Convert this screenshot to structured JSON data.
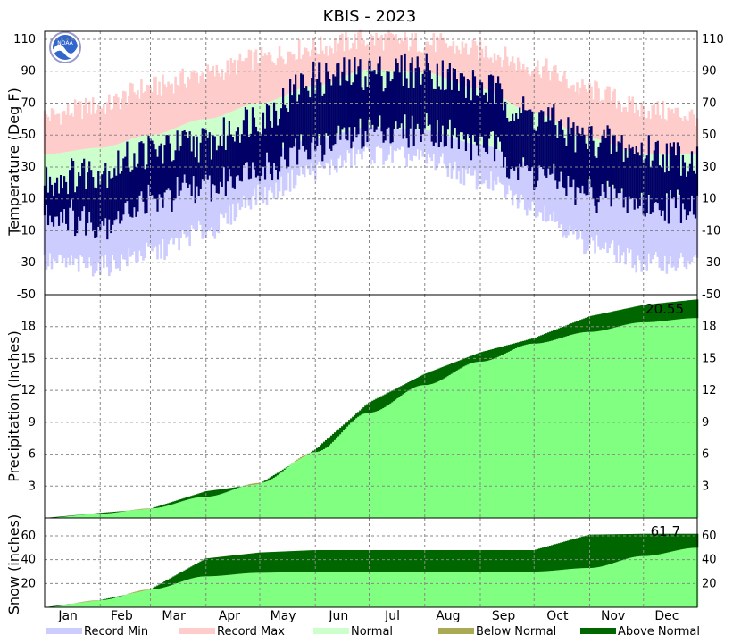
{
  "chart_data": {
    "type": "area",
    "title": "KBIS - 2023",
    "months": [
      "Jan",
      "Feb",
      "Mar",
      "Apr",
      "May",
      "Jun",
      "Jul",
      "Aug",
      "Sep",
      "Oct",
      "Nov",
      "Dec"
    ],
    "legend": {
      "record_min": {
        "label": "Record Min",
        "color": "#ccccff"
      },
      "record_max": {
        "label": "Record Max",
        "color": "#ffcccc"
      },
      "normal": {
        "label": "Normal",
        "color": "#ccffcc"
      },
      "below_normal": {
        "label": "Below Normal",
        "color": "#aaaa55"
      },
      "above_normal": {
        "label": "Above Normal",
        "color": "#006600"
      }
    },
    "temperature": {
      "ylabel": "Temperature (Deg F)",
      "ylim": [
        -50,
        115
      ],
      "ticks": [
        -50,
        -30,
        -10,
        10,
        30,
        50,
        70,
        90,
        110
      ],
      "daily_range_color": "#000066",
      "day_of_year": [
        1,
        32,
        60,
        91,
        121,
        152,
        182,
        213,
        244,
        274,
        305,
        335,
        365
      ],
      "normal_high": [
        38,
        42,
        50,
        60,
        70,
        81,
        91,
        89,
        79,
        64,
        48,
        38,
        38
      ],
      "normal_low": [
        12,
        15,
        21,
        28,
        38,
        48,
        55,
        53,
        44,
        32,
        20,
        12,
        12
      ],
      "record_high": [
        62,
        68,
        80,
        88,
        98,
        105,
        110,
        108,
        103,
        93,
        78,
        66,
        62
      ],
      "record_low": [
        -30,
        -32,
        -24,
        -10,
        12,
        28,
        38,
        35,
        22,
        5,
        -18,
        -30,
        -30
      ],
      "observed_high": [
        22,
        28,
        40,
        45,
        62,
        85,
        89,
        91,
        80,
        62,
        47,
        40,
        35
      ],
      "observed_low": [
        5,
        0,
        12,
        22,
        34,
        48,
        56,
        58,
        48,
        30,
        18,
        10,
        10
      ]
    },
    "precipitation": {
      "ylabel": "Precipitation (Inches)",
      "ylim": [
        0,
        21
      ],
      "ticks": [
        3,
        6,
        9,
        12,
        15,
        18
      ],
      "total_label": "20.55",
      "day_of_year": [
        1,
        32,
        60,
        91,
        121,
        152,
        182,
        213,
        244,
        274,
        305,
        335,
        365
      ],
      "normal": [
        0,
        0.4,
        0.9,
        2.0,
        3.3,
        6.2,
        9.9,
        12.5,
        14.7,
        16.4,
        17.5,
        18.4,
        18.8
      ],
      "actual": [
        0,
        0.5,
        0.9,
        2.6,
        3.3,
        6.6,
        11.1,
        13.8,
        15.8,
        17.1,
        19.1,
        20.1,
        20.55
      ]
    },
    "snow": {
      "ylabel": "Snow (inches)",
      "ylim": [
        0,
        75
      ],
      "ticks": [
        20,
        40,
        60
      ],
      "total_label": "61.7",
      "day_of_year": [
        1,
        32,
        60,
        91,
        121,
        152,
        182,
        213,
        244,
        274,
        305,
        335,
        365
      ],
      "normal": [
        0,
        6,
        15,
        26,
        29,
        30,
        30,
        30,
        30,
        30,
        33,
        43,
        50
      ],
      "actual": [
        0,
        6,
        15,
        41,
        46,
        48,
        48,
        48,
        48,
        48,
        61,
        61.7,
        61.7
      ]
    }
  }
}
